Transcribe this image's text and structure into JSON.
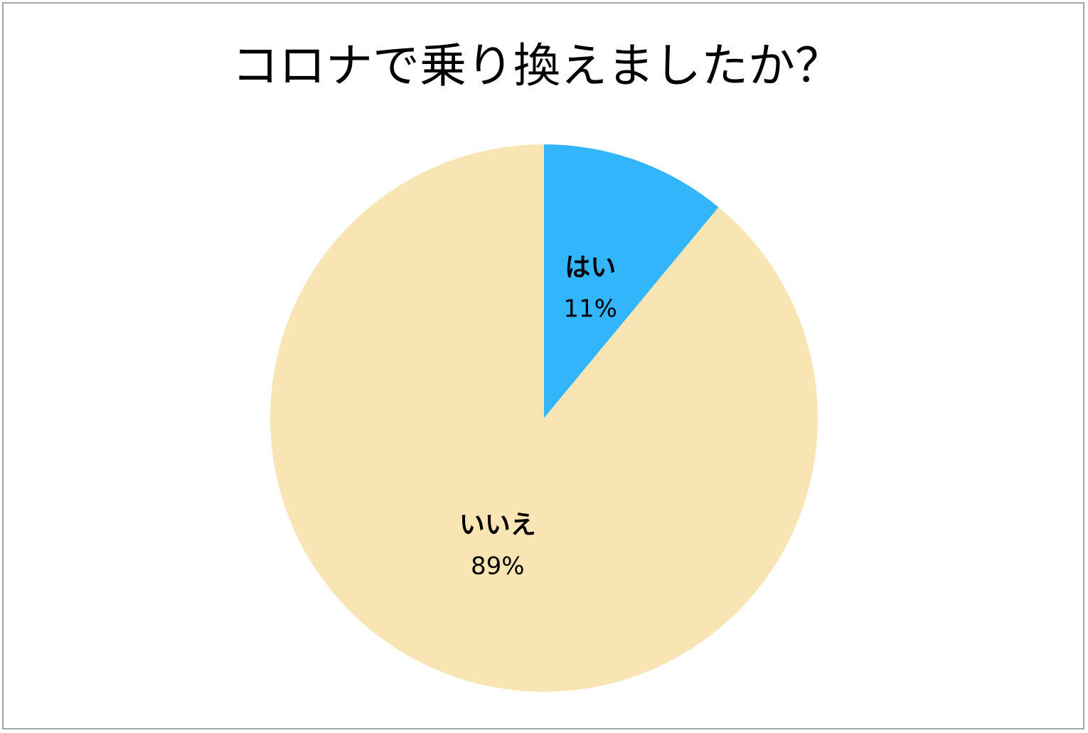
{
  "chart_data": {
    "type": "pie",
    "title": "コロナで乗り換えましたか？",
    "categories": [
      "はい",
      "いいえ"
    ],
    "values": [
      11,
      89
    ],
    "value_labels": [
      "11%",
      "89%"
    ],
    "colors": [
      "#33b5fb",
      "#f9e4b4"
    ]
  }
}
